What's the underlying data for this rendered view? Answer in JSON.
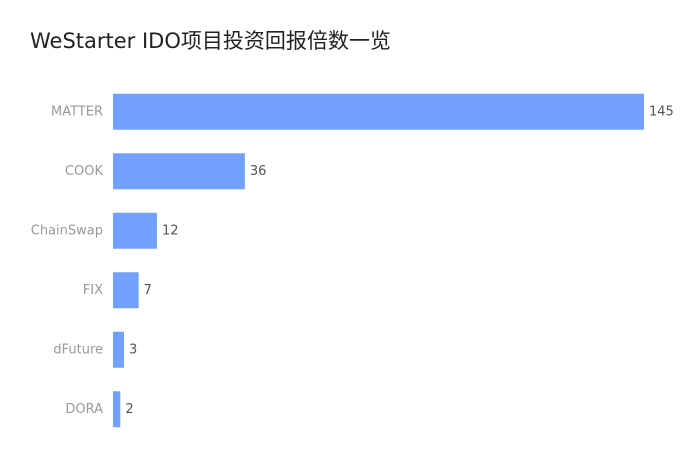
{
  "chart_data": {
    "type": "hbar",
    "title": "WeStarter IDO项目投资回报倍数一览",
    "categories": [
      "MATTER",
      "COOK",
      "ChainSwap",
      "FIX",
      "dFuture",
      "DORA"
    ],
    "values": [
      145,
      36,
      12,
      7,
      3,
      2
    ],
    "color": "#72a0fd",
    "xlim": [
      0,
      145
    ]
  }
}
